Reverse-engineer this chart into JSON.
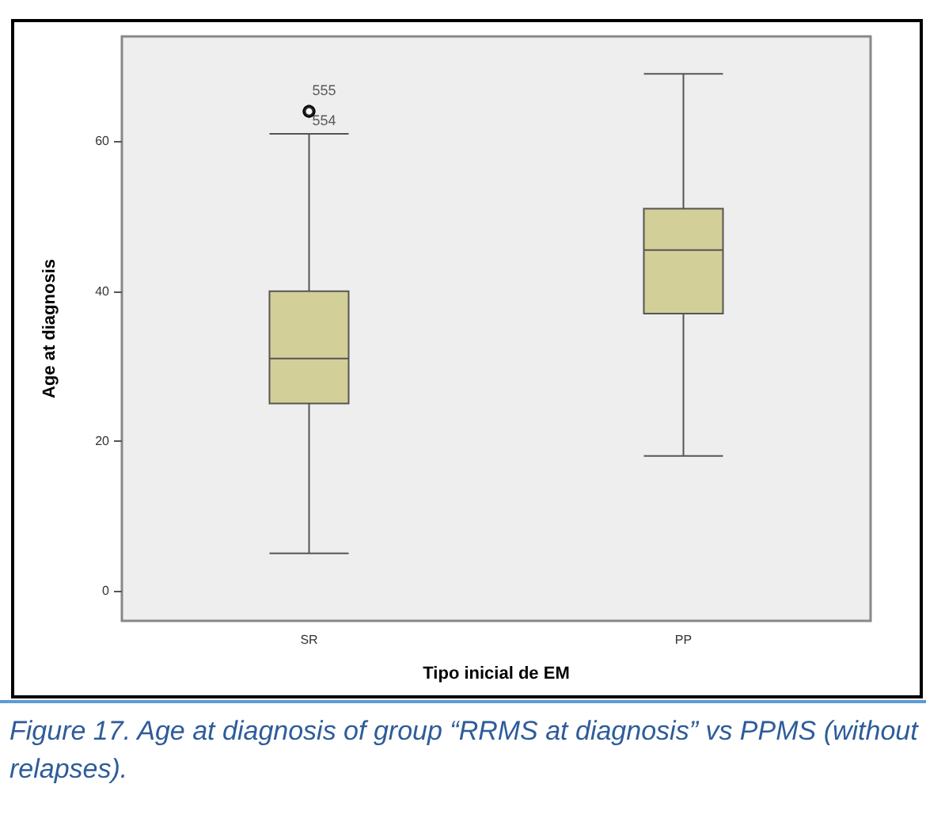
{
  "chart_data": {
    "type": "box",
    "xlabel": "Tipo inicial de EM",
    "ylabel": "Age at diagnosis",
    "categories": [
      "SR",
      "PP"
    ],
    "boxes": [
      {
        "low": 5,
        "q1": 25,
        "median": 31,
        "q3": 40,
        "high": 61,
        "outliers": [
          64,
          64
        ]
      },
      {
        "low": 18,
        "q1": 37,
        "median": 45.5,
        "q3": 51,
        "high": 69
      }
    ],
    "color": "#d3cf98",
    "ylim": [
      -4,
      74
    ],
    "yticks": [
      0,
      20,
      40,
      60
    ],
    "annotations": [
      "555",
      "554",
      "Figure 17. Age at diagnosis of group “RRMS at diagnosis” vs PPMS (without relapses)."
    ]
  }
}
